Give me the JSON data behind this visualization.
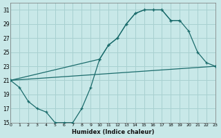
{
  "xlabel": "Humidex (Indice chaleur)",
  "xlim": [
    0,
    23
  ],
  "ylim": [
    15,
    32
  ],
  "xticks": [
    0,
    1,
    2,
    3,
    4,
    5,
    6,
    7,
    8,
    9,
    10,
    11,
    12,
    13,
    14,
    15,
    16,
    17,
    18,
    19,
    20,
    21,
    22,
    23
  ],
  "yticks": [
    15,
    17,
    19,
    21,
    23,
    25,
    27,
    29,
    31
  ],
  "bg_color": "#c8e8e8",
  "grid_color": "#a8d0d0",
  "line_color": "#1a6b6b",
  "line1_x": [
    0,
    1,
    2,
    3,
    4,
    5,
    6,
    7,
    8,
    9,
    10,
    11,
    12,
    13,
    14,
    15,
    16,
    17,
    18,
    19
  ],
  "line1_y": [
    21,
    20,
    18,
    17,
    16.5,
    15,
    15,
    15,
    17,
    20,
    24,
    26,
    27,
    29,
    30.5,
    31,
    31,
    31,
    29.5,
    29.5
  ],
  "line2_x": [
    0,
    10,
    11,
    12,
    13,
    14,
    15,
    16,
    17,
    18,
    19,
    20,
    21,
    22,
    23
  ],
  "line2_y": [
    21,
    24,
    26,
    27,
    29,
    30.5,
    31,
    31,
    31,
    29.5,
    29.5,
    28,
    25,
    23.5,
    23
  ],
  "line3_x": [
    0,
    23
  ],
  "line3_y": [
    21,
    23
  ]
}
